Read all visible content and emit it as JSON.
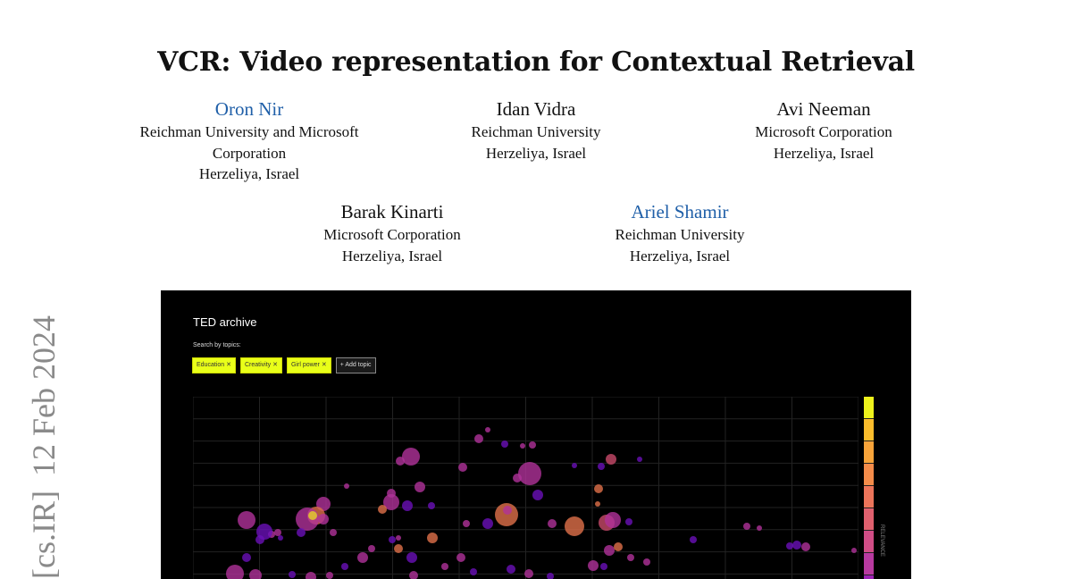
{
  "paper": {
    "title": "VCR: Video representation for Contextual Retrieval",
    "authors": [
      {
        "name": "Oron Nir",
        "affiliation": [
          "Reichman University and Microsoft",
          "Corporation",
          "Herzeliya, Israel"
        ],
        "linked": true
      },
      {
        "name": "Idan Vidra",
        "affiliation": [
          "Reichman University",
          "Herzeliya, Israel"
        ],
        "linked": false
      },
      {
        "name": "Avi Neeman",
        "affiliation": [
          "Microsoft Corporation",
          "Herzeliya, Israel"
        ],
        "linked": false
      },
      {
        "name": "Barak Kinarti",
        "affiliation": [
          "Microsoft Corporation",
          "Herzeliya, Israel"
        ],
        "linked": false
      },
      {
        "name": "Ariel Shamir",
        "affiliation": [
          "Reichman University",
          "Herzeliya, Israel"
        ],
        "linked": true
      }
    ],
    "side_stamp": {
      "category": "[cs.IR]",
      "date": "12 Feb 2024"
    }
  },
  "figure": {
    "app_title": "TED archive",
    "search_label": "Search by topics:",
    "topics": [
      "Education",
      "Creativity",
      "Girl power"
    ],
    "add_topic_label": "+ Add topic",
    "colorbar_label": "RELEVANCE",
    "colorbar_colors": [
      "#eef21c",
      "#fbbd2c",
      "#f9a43a",
      "#f48c4a",
      "#ec745a",
      "#e0606e",
      "#d04d86",
      "#b83aa0",
      "#9c22b4"
    ],
    "link_color": "#1f5fa8"
  }
}
